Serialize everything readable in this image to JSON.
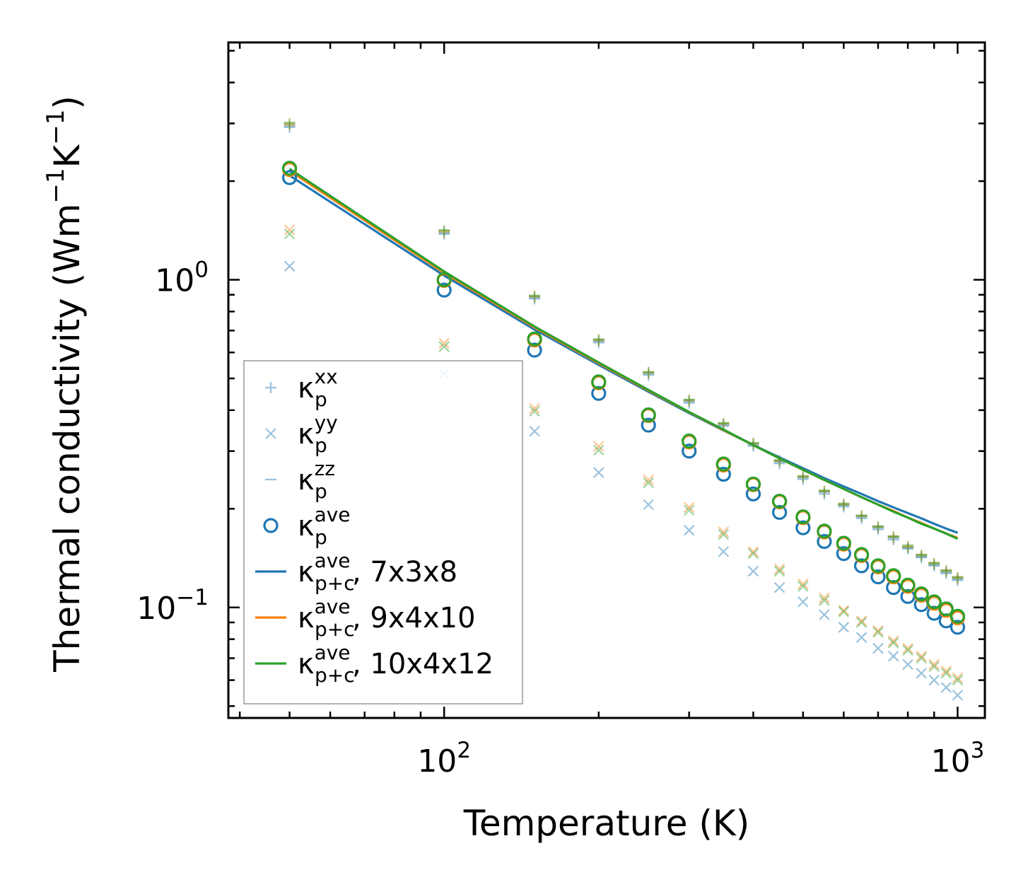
{
  "chart_data": {
    "type": "scatter",
    "title": "",
    "xlabel": "Temperature (K)",
    "ylabel": "Thermal conductivity (Wm",
    "ylabel_sup1": "−1",
    "ylabel_mid": "K",
    "ylabel_sup2": "−1",
    "ylabel_end": ")",
    "xscale": "log",
    "yscale": "log",
    "xlim": [
      38,
      1130
    ],
    "ylim": [
      0.046,
      5.3
    ],
    "x_ticks": [
      {
        "value": 100,
        "base": "10",
        "exp": "2"
      },
      {
        "value": 1000,
        "base": "10",
        "exp": "3"
      }
    ],
    "y_ticks": [
      {
        "value": 1.0,
        "base": "10",
        "exp": "0"
      },
      {
        "value": 0.1,
        "base": "10",
        "exp": "−1"
      }
    ],
    "legend_position": "lower-left",
    "x": [
      50,
      100,
      150,
      200,
      250,
      300,
      350,
      400,
      450,
      500,
      550,
      600,
      650,
      700,
      750,
      800,
      850,
      900,
      950,
      1000
    ],
    "series": [
      {
        "name": "κp^xx",
        "label_main": "κ",
        "label_sub": "p",
        "label_sup": "xx",
        "label_suffix": "",
        "marker": "plus",
        "kind": "component",
        "color": "#1f77b4",
        "opacity": 0.45,
        "values": [
          2.92,
          1.38,
          0.875,
          0.643,
          0.512,
          0.421,
          0.358,
          0.311,
          0.275,
          0.246,
          0.222,
          0.203,
          0.187,
          0.173,
          0.161,
          0.151,
          0.142,
          0.134,
          0.127,
          0.121
        ]
      },
      {
        "name": "κp^yy",
        "label_main": "κ",
        "label_sub": "p",
        "label_sup": "yy",
        "label_suffix": "",
        "marker": "x",
        "kind": "component",
        "color": "#1f77b4",
        "opacity": 0.45,
        "values": [
          1.1,
          0.515,
          0.345,
          0.258,
          0.206,
          0.172,
          0.148,
          0.129,
          0.115,
          0.104,
          0.095,
          0.087,
          0.081,
          0.075,
          0.071,
          0.067,
          0.063,
          0.06,
          0.057,
          0.054
        ]
      },
      {
        "name": "κp^zz",
        "label_main": "κ",
        "label_sub": "p",
        "label_sup": "zz",
        "label_suffix": "",
        "marker": "dash",
        "kind": "component",
        "color": "#1f77b4",
        "opacity": 0.45,
        "values": [
          2.95,
          1.39,
          0.882,
          0.649,
          0.517,
          0.425,
          0.361,
          0.314,
          0.278,
          0.249,
          0.225,
          0.205,
          0.189,
          0.175,
          0.163,
          0.152,
          0.143,
          0.135,
          0.128,
          0.122
        ]
      },
      {
        "name": "κp^ave",
        "label_main": "κ",
        "label_sub": "p",
        "label_sup": "ave",
        "label_suffix": "",
        "marker": "circle",
        "kind": "average",
        "color": "#1f77b4",
        "opacity": 1,
        "values": [
          2.05,
          0.93,
          0.61,
          0.45,
          0.36,
          0.3,
          0.255,
          0.222,
          0.195,
          0.175,
          0.159,
          0.146,
          0.134,
          0.124,
          0.115,
          0.108,
          0.102,
          0.096,
          0.091,
          0.087
        ]
      },
      {
        "name": "κp+c^ave, 7x3x8",
        "label_main": "κ",
        "label_sub": "p+c",
        "label_sup": "ave",
        "label_suffix": ", 7x3x8",
        "marker": "line",
        "kind": "line",
        "color": "#1f77b4",
        "opacity": 1,
        "values": [
          2.08,
          1.03,
          0.705,
          0.55,
          0.455,
          0.392,
          0.347,
          0.313,
          0.287,
          0.266,
          0.248,
          0.234,
          0.222,
          0.211,
          0.202,
          0.194,
          0.187,
          0.18,
          0.174,
          0.169
        ]
      },
      {
        "name": "κp+c^ave, 9x4x10",
        "label_main": "κ",
        "label_sub": "p+c",
        "label_sup": "ave",
        "label_suffix": ", 9x4x10",
        "marker": "line",
        "kind": "line",
        "color": "#ff7f0e",
        "opacity": 1,
        "values": [
          2.15,
          1.05,
          0.715,
          0.556,
          0.459,
          0.394,
          0.348,
          0.313,
          0.285,
          0.263,
          0.245,
          0.23,
          0.217,
          0.206,
          0.197,
          0.188,
          0.181,
          0.174,
          0.168,
          0.163
        ]
      },
      {
        "name": "κp+c^ave, 10x4x12",
        "label_main": "κ",
        "label_sub": "p+c",
        "label_sup": "ave",
        "label_suffix": ", 10x4x12",
        "marker": "line",
        "kind": "line",
        "color": "#2ca02c",
        "opacity": 1,
        "values": [
          2.18,
          1.06,
          0.72,
          0.559,
          0.461,
          0.395,
          0.349,
          0.313,
          0.285,
          0.263,
          0.245,
          0.23,
          0.217,
          0.206,
          0.196,
          0.188,
          0.18,
          0.174,
          0.168,
          0.162
        ]
      }
    ],
    "overlays": [
      {
        "name": "κp^xx 9x4x10",
        "marker": "plus",
        "kind": "component",
        "color": "#ff7f0e",
        "opacity": 0.45,
        "values": [
          2.97,
          1.4,
          0.888,
          0.653,
          0.52,
          0.428,
          0.363,
          0.316,
          0.28,
          0.25,
          0.226,
          0.206,
          0.19,
          0.176,
          0.164,
          0.153,
          0.144,
          0.136,
          0.129,
          0.123
        ]
      },
      {
        "name": "κp^yy 9x4x10",
        "marker": "x",
        "kind": "component",
        "color": "#ff7f0e",
        "opacity": 0.45,
        "values": [
          1.42,
          0.64,
          0.405,
          0.31,
          0.245,
          0.202,
          0.17,
          0.148,
          0.131,
          0.118,
          0.107,
          0.098,
          0.091,
          0.085,
          0.079,
          0.075,
          0.071,
          0.067,
          0.064,
          0.061
        ]
      },
      {
        "name": "κp^zz 9x4x10",
        "marker": "dash",
        "kind": "component",
        "color": "#ff7f0e",
        "opacity": 0.45,
        "values": [
          3.0,
          1.41,
          0.893,
          0.657,
          0.523,
          0.43,
          0.365,
          0.317,
          0.281,
          0.252,
          0.227,
          0.207,
          0.191,
          0.177,
          0.165,
          0.154,
          0.145,
          0.137,
          0.13,
          0.124
        ]
      },
      {
        "name": "κp^ave 9x4x10",
        "marker": "circle",
        "kind": "average",
        "color": "#ff7f0e",
        "opacity": 1,
        "values": [
          2.17,
          0.995,
          0.655,
          0.485,
          0.385,
          0.32,
          0.272,
          0.237,
          0.21,
          0.188,
          0.17,
          0.156,
          0.144,
          0.133,
          0.124,
          0.116,
          0.109,
          0.103,
          0.098,
          0.093
        ]
      },
      {
        "name": "κp^xx 10x4x12",
        "marker": "plus",
        "kind": "component",
        "color": "#2ca02c",
        "opacity": 0.45,
        "values": [
          2.99,
          1.41,
          0.89,
          0.655,
          0.521,
          0.429,
          0.364,
          0.317,
          0.28,
          0.25,
          0.226,
          0.206,
          0.19,
          0.176,
          0.164,
          0.153,
          0.144,
          0.136,
          0.129,
          0.123
        ]
      },
      {
        "name": "κp^yy 10x4x12",
        "marker": "x",
        "kind": "component",
        "color": "#2ca02c",
        "opacity": 0.45,
        "values": [
          1.38,
          0.625,
          0.397,
          0.302,
          0.24,
          0.198,
          0.167,
          0.146,
          0.129,
          0.116,
          0.105,
          0.097,
          0.09,
          0.084,
          0.078,
          0.074,
          0.07,
          0.066,
          0.063,
          0.06
        ]
      },
      {
        "name": "κp^zz 10x4x12",
        "marker": "dash",
        "kind": "component",
        "color": "#2ca02c",
        "opacity": 0.45,
        "values": [
          3.02,
          1.42,
          0.896,
          0.659,
          0.524,
          0.431,
          0.366,
          0.318,
          0.282,
          0.252,
          0.228,
          0.208,
          0.191,
          0.177,
          0.165,
          0.155,
          0.145,
          0.137,
          0.13,
          0.124
        ]
      },
      {
        "name": "κp^ave 10x4x12",
        "marker": "circle",
        "kind": "average",
        "color": "#2ca02c",
        "opacity": 1,
        "values": [
          2.19,
          1.0,
          0.66,
          0.488,
          0.387,
          0.322,
          0.274,
          0.238,
          0.211,
          0.189,
          0.171,
          0.157,
          0.145,
          0.134,
          0.125,
          0.117,
          0.11,
          0.104,
          0.099,
          0.094
        ]
      }
    ]
  }
}
